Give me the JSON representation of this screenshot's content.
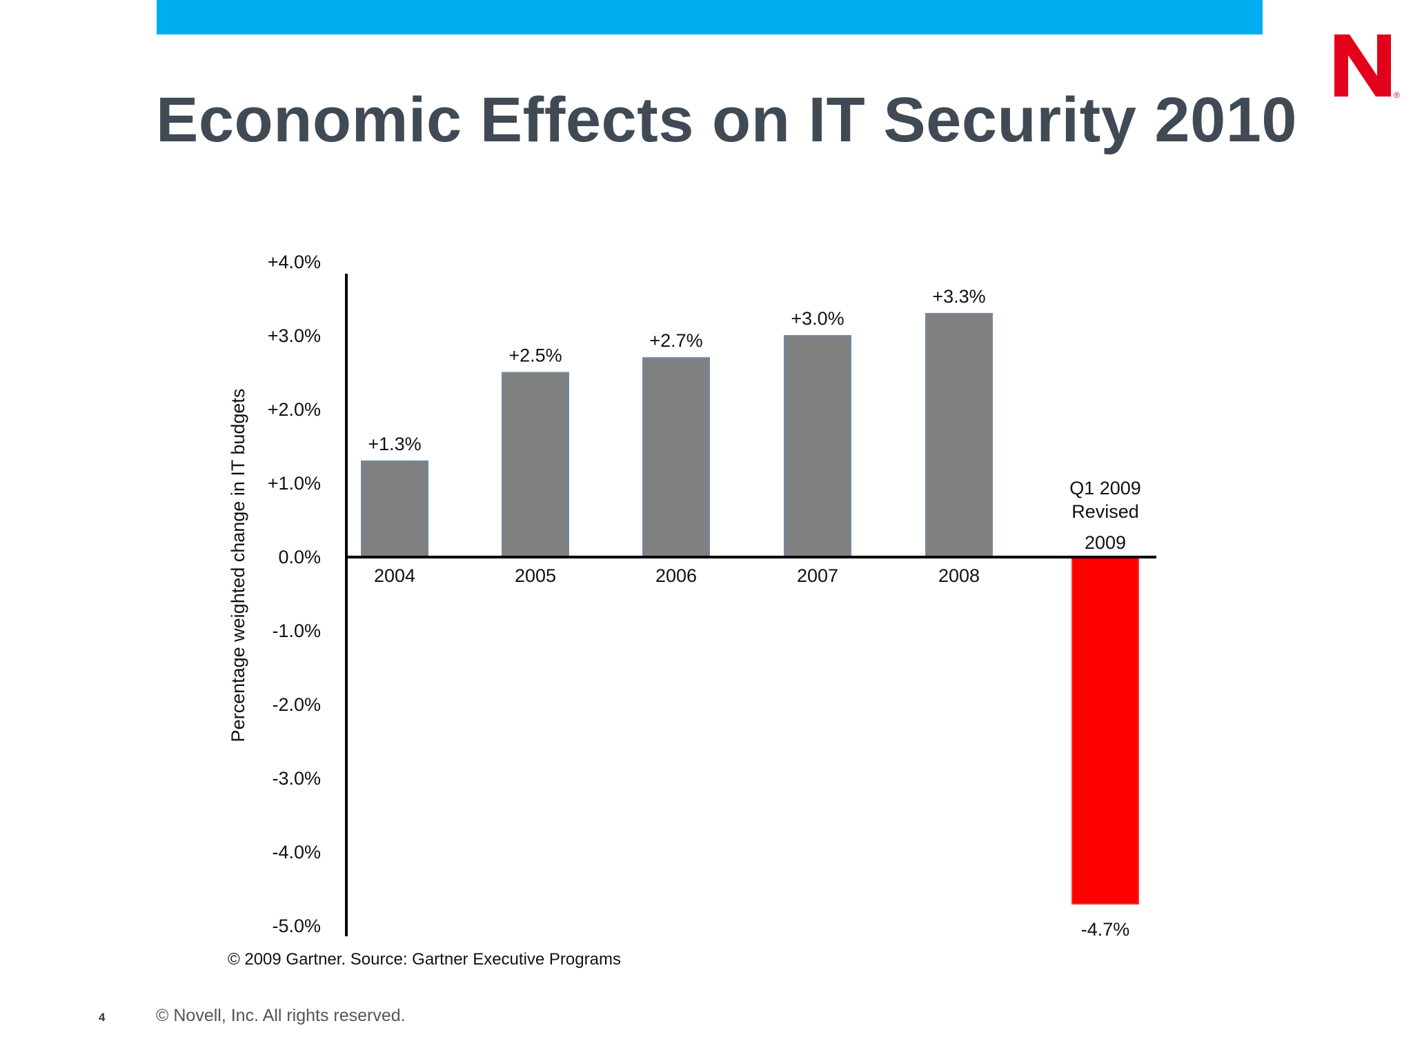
{
  "slide": {
    "title": "Economic Effects on IT Security 2010",
    "page_number": "4",
    "footer": "© Novell, Inc.  All rights reserved.",
    "logo_text": "N",
    "colors": {
      "accent_bar": "#00aeef",
      "title": "#3f4a55",
      "logo": "#e3001b"
    }
  },
  "chart_data": {
    "type": "bar",
    "title": "",
    "ylabel": "Percentage weighted change in IT budgets",
    "ylim": [
      -5,
      4
    ],
    "yticks": [
      "+4.0%",
      "+3.0%",
      "+2.0%",
      "+1.0%",
      "0.0%",
      "-1.0%",
      "-2.0%",
      "-3.0%",
      "-4.0%",
      "-5.0%"
    ],
    "categories": [
      "2004",
      "2005",
      "2006",
      "2007",
      "2008",
      "2009"
    ],
    "values": [
      1.3,
      2.5,
      2.7,
      3.0,
      3.3,
      -4.7
    ],
    "data_labels": [
      "+1.3%",
      "+2.5%",
      "+2.7%",
      "+3.0%",
      "+3.3%",
      "-4.7%"
    ],
    "annotation": [
      "Q1 2009",
      "Revised"
    ],
    "source": "© 2009 Gartner.  Source: Gartner Executive Programs",
    "colors": {
      "positive": "#808080",
      "negative": "#ff0000"
    }
  }
}
